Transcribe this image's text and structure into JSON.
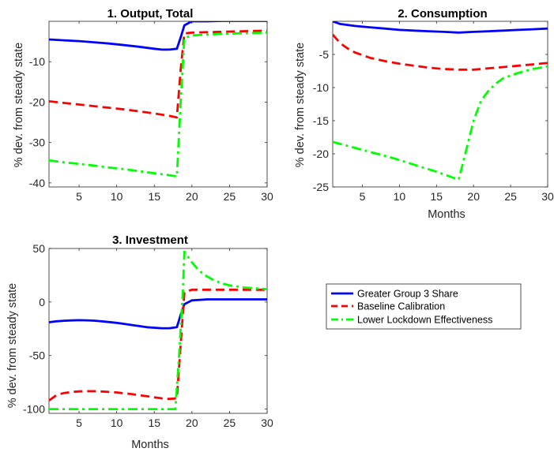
{
  "chart_data": [
    {
      "type": "line",
      "title": "1. Output, Total",
      "xlabel": "",
      "ylabel": "% dev. from steady state",
      "xlim": [
        1,
        30
      ],
      "ylim": [
        -41,
        0
      ],
      "xticks": [
        5,
        10,
        15,
        20,
        25,
        30
      ],
      "yticks": [
        -40,
        -30,
        -20,
        -10
      ],
      "grid": false,
      "series": [
        {
          "name": "Greater Group 3 Share",
          "color": "#0000ff",
          "dash": "solid",
          "x": [
            1,
            3,
            5,
            7,
            9,
            11,
            13,
            15,
            16,
            17,
            18,
            18.5,
            19,
            20,
            22,
            24,
            26,
            28,
            30
          ],
          "y": [
            -4.5,
            -4.7,
            -4.9,
            -5.2,
            -5.5,
            -5.9,
            -6.3,
            -6.8,
            -7.0,
            -7.0,
            -6.8,
            -4.0,
            -1.0,
            0.0,
            0.0,
            0.1,
            0.1,
            0.1,
            0.1
          ]
        },
        {
          "name": "Baseline Calibration",
          "color": "#ff0000",
          "dash": "dashed",
          "x": [
            1,
            3,
            5,
            7,
            9,
            11,
            13,
            15,
            17,
            18,
            18.5,
            19,
            20,
            22,
            24,
            26,
            28,
            30
          ],
          "y": [
            -19.8,
            -20.2,
            -20.6,
            -21.0,
            -21.4,
            -21.8,
            -22.3,
            -22.8,
            -23.4,
            -23.8,
            -12.0,
            -3.0,
            -2.8,
            -2.7,
            -2.6,
            -2.5,
            -2.4,
            -2.3
          ]
        },
        {
          "name": "Lower Lockdown Effectiveness",
          "color": "#00ff00",
          "dash": "dashdot",
          "x": [
            1,
            3,
            5,
            7,
            9,
            11,
            13,
            15,
            17,
            18,
            18.5,
            19,
            20,
            22,
            24,
            26,
            28,
            30
          ],
          "y": [
            -34.4,
            -34.9,
            -35.3,
            -35.7,
            -36.2,
            -36.6,
            -37.1,
            -37.6,
            -38.1,
            -38.4,
            -20.0,
            -4.2,
            -3.5,
            -3.3,
            -3.1,
            -3.0,
            -2.9,
            -2.8
          ]
        }
      ]
    },
    {
      "type": "line",
      "title": "2. Consumption",
      "xlabel": "Months",
      "ylabel": "% dev. from steady state",
      "xlim": [
        1,
        30
      ],
      "ylim": [
        -25,
        0
      ],
      "xticks": [
        5,
        10,
        15,
        20,
        25,
        30
      ],
      "yticks": [
        -25,
        -20,
        -15,
        -10,
        -5
      ],
      "grid": false,
      "series": [
        {
          "name": "Greater Group 3 Share",
          "color": "#0000ff",
          "dash": "solid",
          "x": [
            1,
            2,
            4,
            6,
            8,
            10,
            12,
            14,
            16,
            18,
            20,
            22,
            24,
            26,
            28,
            30
          ],
          "y": [
            0.0,
            -0.4,
            -0.7,
            -0.9,
            -1.1,
            -1.3,
            -1.4,
            -1.5,
            -1.6,
            -1.7,
            -1.6,
            -1.5,
            -1.4,
            -1.3,
            -1.2,
            -1.1
          ]
        },
        {
          "name": "Baseline Calibration",
          "color": "#ff0000",
          "dash": "dashed",
          "x": [
            1,
            2,
            3,
            4,
            6,
            8,
            10,
            12,
            14,
            16,
            18,
            20,
            22,
            24,
            26,
            28,
            30
          ],
          "y": [
            -2.0,
            -3.3,
            -4.1,
            -4.7,
            -5.5,
            -6.0,
            -6.4,
            -6.7,
            -7.0,
            -7.2,
            -7.3,
            -7.3,
            -7.1,
            -6.9,
            -6.7,
            -6.5,
            -6.3
          ]
        },
        {
          "name": "Lower Lockdown Effectiveness",
          "color": "#00ff00",
          "dash": "dashdot",
          "x": [
            1,
            3,
            5,
            7,
            9,
            11,
            13,
            15,
            17,
            18,
            19,
            20,
            21,
            22,
            23,
            24,
            26,
            28,
            30
          ],
          "y": [
            -18.2,
            -18.8,
            -19.4,
            -20.0,
            -20.6,
            -21.3,
            -22.0,
            -22.7,
            -23.5,
            -23.9,
            -19.5,
            -15.0,
            -12.0,
            -10.5,
            -9.4,
            -8.6,
            -7.8,
            -7.2,
            -6.8
          ]
        }
      ]
    },
    {
      "type": "line",
      "title": "3. Investment",
      "xlabel": "Months",
      "ylabel": "% dev. from steady state",
      "xlim": [
        1,
        30
      ],
      "ylim": [
        -104,
        50
      ],
      "xticks": [
        5,
        10,
        15,
        20,
        25,
        30
      ],
      "yticks": [
        -100,
        -50,
        0,
        50
      ],
      "grid": false,
      "series": [
        {
          "name": "Greater Group 3 Share",
          "color": "#0000ff",
          "dash": "solid",
          "x": [
            1,
            2,
            3,
            4,
            5,
            6,
            7,
            8,
            10,
            12,
            14,
            16,
            17,
            18,
            18.5,
            19,
            20,
            22,
            24,
            26,
            28,
            30
          ],
          "y": [
            -19.0,
            -18.0,
            -17.5,
            -17.2,
            -17.0,
            -17.1,
            -17.4,
            -18.0,
            -19.5,
            -21.5,
            -23.5,
            -24.5,
            -24.5,
            -23.5,
            -12.0,
            -2.0,
            1.5,
            2.5,
            2.5,
            2.5,
            2.5,
            2.5
          ]
        },
        {
          "name": "Baseline Calibration",
          "color": "#ff0000",
          "dash": "dashed",
          "x": [
            1,
            2,
            3,
            4,
            5,
            6,
            7,
            8,
            10,
            12,
            14,
            16,
            17,
            18,
            18.5,
            19,
            20,
            22,
            24,
            26,
            28,
            30
          ],
          "y": [
            -92.0,
            -87.0,
            -85.0,
            -84.0,
            -83.5,
            -83.3,
            -83.3,
            -83.6,
            -84.5,
            -86.0,
            -88.0,
            -90.0,
            -90.5,
            -90.0,
            -40.0,
            9.0,
            11.5,
            11.5,
            11.5,
            11.5,
            11.5,
            11.5
          ]
        },
        {
          "name": "Lower Lockdown Effectiveness",
          "color": "#00ff00",
          "dash": "dashdot",
          "x": [
            1,
            4,
            8,
            12,
            16,
            17,
            17.8,
            18.3,
            18.8,
            19,
            20,
            21,
            22,
            23,
            24,
            25,
            26,
            27,
            28,
            30
          ],
          "y": [
            -100,
            -100,
            -100,
            -100,
            -100,
            -100,
            -100,
            -50.0,
            10.0,
            47.0,
            37.0,
            29.0,
            24.0,
            20.0,
            17.5,
            15.5,
            14.5,
            13.5,
            13.0,
            12.0
          ]
        }
      ]
    }
  ],
  "legend": {
    "placement": "right-of-panel-3",
    "items": [
      {
        "label": "Greater Group 3 Share",
        "color": "#0000ff",
        "dash": "solid"
      },
      {
        "label": "Baseline Calibration",
        "color": "#ff0000",
        "dash": "dashed"
      },
      {
        "label": "Lower Lockdown Effectiveness",
        "color": "#00ff00",
        "dash": "dashdot"
      }
    ]
  }
}
